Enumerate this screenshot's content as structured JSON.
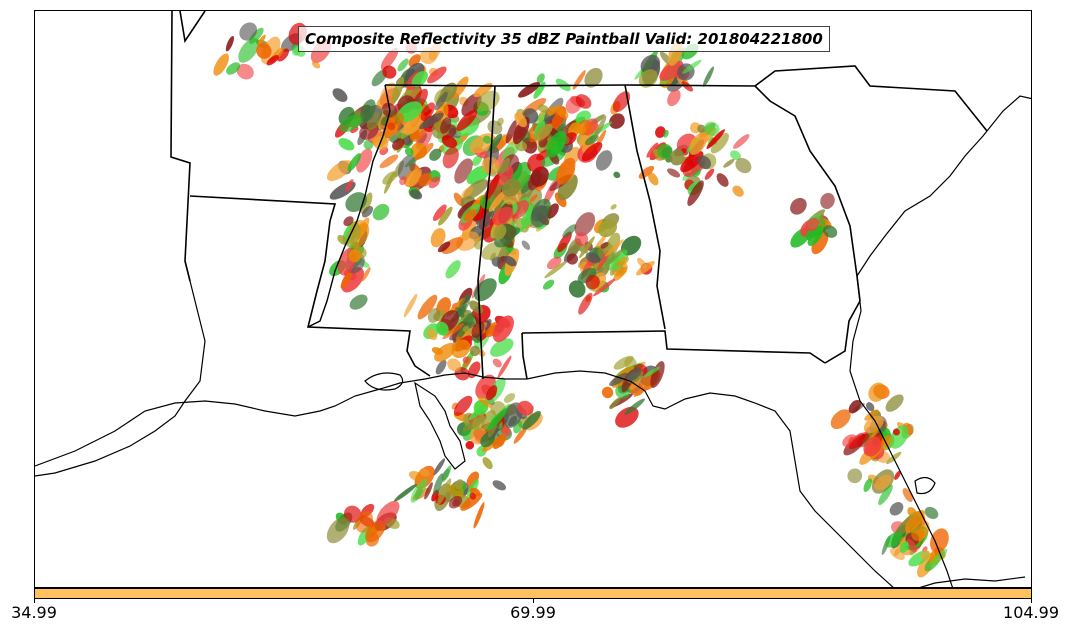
{
  "title": "Composite Reflectivity 35 dBZ Paintball Valid: 201804221800",
  "colorbar": {
    "color": "#ffc060",
    "tick_labels": [
      "34.99",
      "69.99",
      "104.99"
    ]
  },
  "member_colors": [
    "#dd0000",
    "#ee6600",
    "#ee8800",
    "#f4a030",
    "#f04040",
    "#22bb22",
    "#44dd44",
    "#337733",
    "#888833",
    "#8b1a1a",
    "#555555",
    "#a0a030"
  ]
}
